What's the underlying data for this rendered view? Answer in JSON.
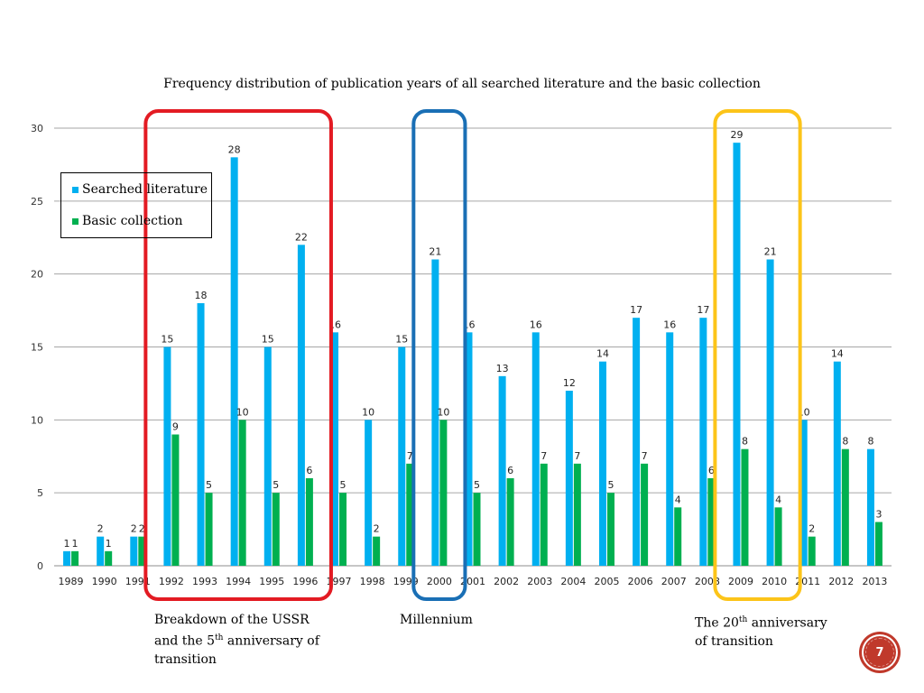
{
  "chart_data": {
    "type": "bar",
    "title": "Frequency distribution of publication years of all searched literature and the basic collection",
    "categories": [
      "1989",
      "1990",
      "1991",
      "1992",
      "1993",
      "1994",
      "1995",
      "1996",
      "1997",
      "1998",
      "1999",
      "2000",
      "2001",
      "2002",
      "2003",
      "2004",
      "2005",
      "2006",
      "2007",
      "2008",
      "2009",
      "2010",
      "2011",
      "2012",
      "2013"
    ],
    "series": [
      {
        "name": "Searched literature",
        "color": "#00b0f0",
        "values": [
          1,
          2,
          2,
          15,
          18,
          28,
          15,
          22,
          16,
          10,
          15,
          21,
          16,
          13,
          16,
          12,
          14,
          17,
          16,
          17,
          29,
          21,
          10,
          14,
          8
        ]
      },
      {
        "name": "Basic collection",
        "color": "#00b050",
        "values": [
          1,
          1,
          2,
          9,
          5,
          10,
          5,
          6,
          5,
          2,
          7,
          10,
          5,
          6,
          7,
          7,
          5,
          7,
          4,
          6,
          8,
          4,
          2,
          8,
          3
        ]
      }
    ],
    "ylim": [
      0,
      30
    ],
    "yticks": [
      0,
      5,
      10,
      15,
      20,
      25,
      30
    ],
    "grid": true,
    "legend": "top-left",
    "highlights": [
      {
        "from": "1992",
        "to": "1996",
        "color": "#e31b23"
      },
      {
        "from": "2000",
        "to": "2000",
        "color": "#1a6fb5"
      },
      {
        "from": "2009",
        "to": "2010",
        "color": "#fcc419"
      }
    ]
  },
  "annotations": {
    "ussr": {
      "line1": "Breakdown of the USSR",
      "line2_pre": "and the 5",
      "line2_sup": "th",
      "line2_post": " anniversary of",
      "line3": "transition"
    },
    "millennium": {
      "line1": "Millennium"
    },
    "transition": {
      "line1_pre": "The 20",
      "line1_sup": "th",
      "line1_post": " anniversary",
      "line2": "of transition"
    }
  },
  "page_number": "7"
}
